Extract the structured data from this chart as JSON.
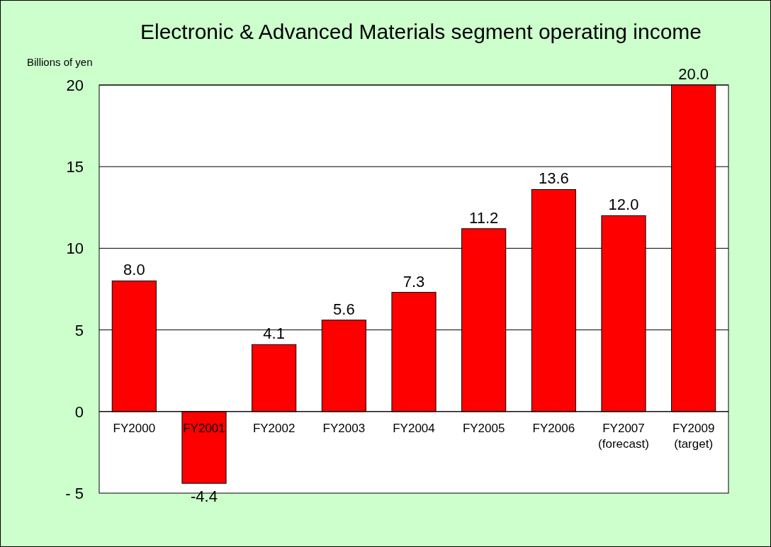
{
  "chart_data": {
    "type": "bar",
    "title": "Electronic & Advanced Materials segment operating income",
    "ylabel": "Billions of yen",
    "categories": [
      "FY2000",
      "FY2001",
      "FY2002",
      "FY2003",
      "FY2004",
      "FY2005",
      "FY2006",
      "FY2007\n(forecast)",
      "FY2009\n(target)"
    ],
    "values": [
      8.0,
      -4.4,
      4.1,
      5.6,
      7.3,
      11.2,
      13.6,
      12.0,
      20.0
    ],
    "value_labels": [
      "8.0",
      "-4.4",
      "4.1",
      "5.6",
      "7.3",
      "11.2",
      "13.6",
      "12.0",
      "20.0"
    ],
    "color": "#ff0000",
    "ylim": [
      -5,
      20
    ],
    "yticks": [
      {
        "value": -5,
        "label": "- 5"
      },
      0,
      5,
      10,
      15,
      20
    ],
    "grid": "y"
  }
}
